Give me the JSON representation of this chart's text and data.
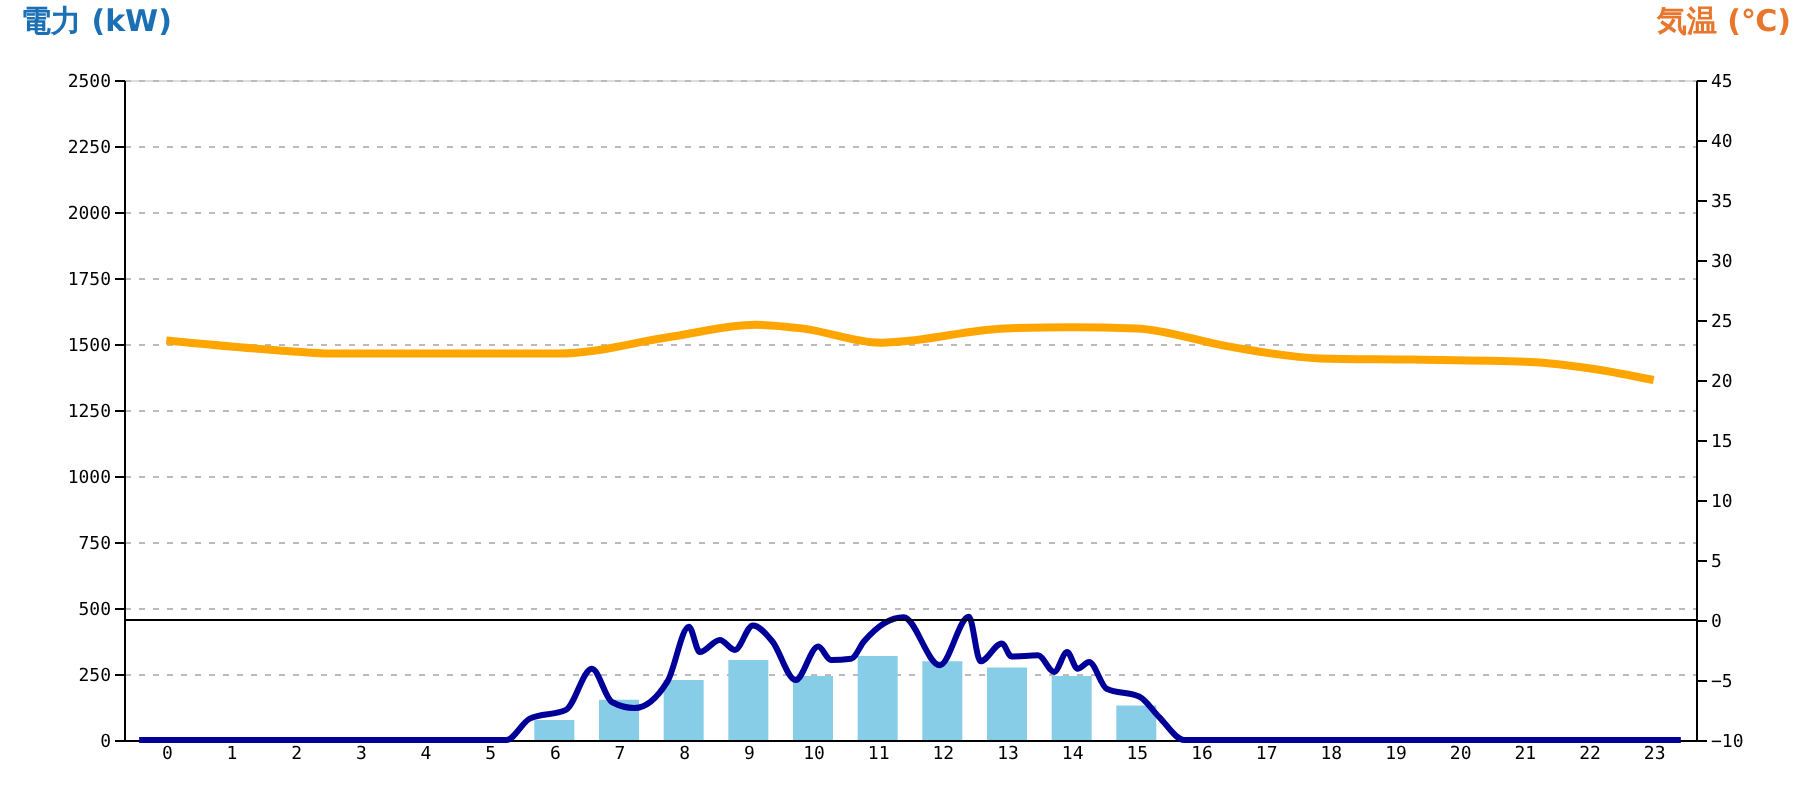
{
  "chart_data": {
    "type": "bar",
    "ylabel": "電力 (kW)",
    "y2label": "気温 (℃)",
    "xlim": [
      -0.5,
      23.5
    ],
    "xticks": [
      0,
      1,
      2,
      3,
      4,
      5,
      6,
      7,
      8,
      9,
      10,
      11,
      12,
      13,
      14,
      15,
      16,
      17,
      18,
      19,
      20,
      21,
      22,
      23
    ],
    "ylim": [
      0,
      2500
    ],
    "yticks": [
      0,
      250,
      500,
      750,
      1000,
      1250,
      1500,
      1750,
      2000,
      2250,
      2500
    ],
    "y2lim": [
      -10,
      45
    ],
    "y2ticks": [
      -10,
      -5,
      0,
      5,
      10,
      15,
      20,
      25,
      30,
      35,
      40,
      45
    ],
    "grid": "y",
    "ref_lines": [
      {
        "axis": "y2",
        "value": 0,
        "color": "#000000"
      }
    ],
    "series": [
      {
        "color": "#87cde8",
        "x": [
          0,
          1,
          2,
          3,
          4,
          5,
          6,
          7,
          8,
          9,
          10,
          11,
          12,
          13,
          14,
          15,
          16,
          17,
          18,
          19,
          20,
          21,
          22,
          23
        ],
        "values": [
          0,
          0,
          0,
          0,
          0,
          0,
          76,
          152,
          227,
          303,
          242,
          318,
          298,
          275,
          242,
          131,
          0,
          0,
          0,
          0,
          0,
          0,
          0,
          0
        ]
      },
      {
        "type": "line",
        "color": "#000099",
        "x": [
          -0.42,
          5.26,
          5.62,
          6.18,
          6.58,
          6.89,
          7.24,
          7.75,
          8.08,
          8.25,
          8.56,
          8.79,
          9.07,
          9.37,
          9.73,
          10.08,
          10.28,
          10.59,
          10.79,
          11.4,
          11.96,
          12.41,
          12.59,
          12.92,
          13.07,
          13.48,
          13.73,
          13.93,
          14.09,
          14.27,
          14.54,
          15.05,
          15.35,
          15.74,
          23.42
        ],
        "values": [
          0,
          0,
          81,
          114,
          270,
          144,
          121,
          222,
          429,
          333,
          379,
          341,
          434,
          374,
          227,
          354,
          303,
          308,
          374,
          465,
          283,
          467,
          298,
          366,
          316,
          321,
          258,
          333,
          270,
          295,
          194,
          164,
          88,
          0,
          0
        ]
      },
      {
        "type": "line",
        "axis": "y2",
        "color": "#ffa500",
        "x": [
          0,
          1.92,
          2.53,
          6.07,
          7.8,
          9.12,
          9.83,
          11.04,
          11.35,
          12.97,
          13.99,
          15.0,
          16.42,
          17.84,
          19.26,
          21.08,
          22.1,
          23.0
        ],
        "values": [
          23.3,
          22.4,
          22.2,
          22.2,
          23.6,
          24.6,
          24.3,
          23.1,
          23.2,
          24.3,
          24.4,
          24.3,
          22.8,
          21.8,
          21.7,
          21.5,
          20.9,
          20.0
        ]
      }
    ]
  }
}
